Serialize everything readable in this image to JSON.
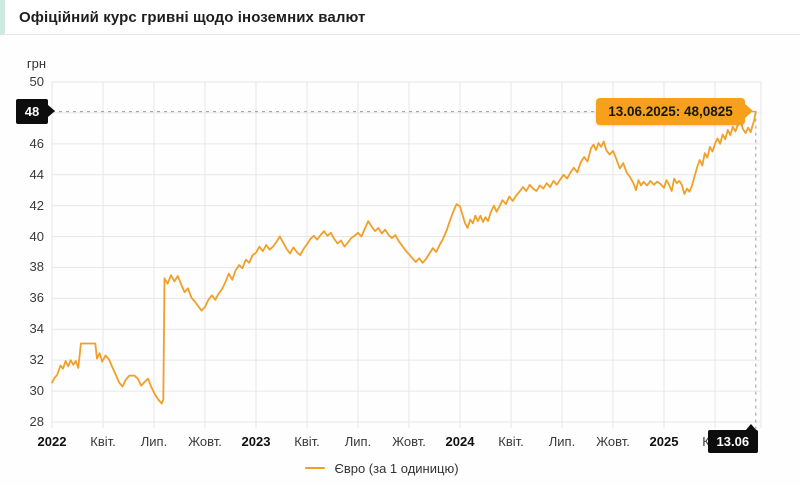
{
  "header": {
    "title": "Офіційний курс гривні щодо іноземних валют"
  },
  "chart_data": {
    "type": "line",
    "title": "Офіційний курс гривні щодо іноземних валют",
    "unit": "грн",
    "grid": true,
    "legend_position": "bottom",
    "legend": {
      "label": "Євро (за 1 одиницю)"
    },
    "colors": {
      "line": "#F0A028",
      "tooltip_bg": "#F6A01B",
      "badge_bg": "#0D0D0D",
      "grid": "#E7E7E7",
      "dash": "#9A9A9A",
      "header_accent": "#CDE9E0"
    },
    "x_unit": "months since Jan 2022",
    "x_range": [
      0,
      41.4
    ],
    "y_axis": {
      "label": "грн",
      "min": 28,
      "max": 50,
      "tick_step": 2,
      "ticks": [
        50,
        46,
        44,
        42,
        40,
        38,
        36,
        34,
        32,
        30,
        28
      ]
    },
    "x_axis": {
      "ticks": [
        {
          "m": 0,
          "label": "2022",
          "bold": true
        },
        {
          "m": 3,
          "label": "Квіт."
        },
        {
          "m": 6,
          "label": "Лип."
        },
        {
          "m": 9,
          "label": "Жовт."
        },
        {
          "m": 12,
          "label": "2023",
          "bold": true
        },
        {
          "m": 15,
          "label": "Квіт."
        },
        {
          "m": 18,
          "label": "Лип."
        },
        {
          "m": 21,
          "label": "Жовт."
        },
        {
          "m": 24,
          "label": "2024",
          "bold": true
        },
        {
          "m": 27,
          "label": "Квіт."
        },
        {
          "m": 30,
          "label": "Лип."
        },
        {
          "m": 33,
          "label": "Жовт."
        },
        {
          "m": 36,
          "label": "2025",
          "bold": true
        },
        {
          "m": 39,
          "label": "Квіт."
        }
      ]
    },
    "crosshair": {
      "y_badge": "48",
      "x_badge": "13.06",
      "tooltip": "13.06.2025: 48,0825",
      "month": 41.4,
      "value": 48.0825
    },
    "series": [
      {
        "name": "Євро (за 1 одиницю)",
        "color": "#F0A028",
        "points": [
          [
            0,
            30.55
          ],
          [
            0.15,
            30.85
          ],
          [
            0.3,
            31.05
          ],
          [
            0.5,
            31.65
          ],
          [
            0.65,
            31.45
          ],
          [
            0.8,
            31.95
          ],
          [
            0.95,
            31.6
          ],
          [
            1.1,
            32.0
          ],
          [
            1.25,
            31.7
          ],
          [
            1.4,
            31.95
          ],
          [
            1.55,
            31.5
          ],
          [
            1.7,
            33.08
          ],
          [
            2.55,
            33.08
          ],
          [
            2.65,
            32.1
          ],
          [
            2.8,
            32.45
          ],
          [
            2.95,
            31.9
          ],
          [
            3.15,
            32.3
          ],
          [
            3.35,
            32.05
          ],
          [
            3.55,
            31.55
          ],
          [
            3.75,
            31.05
          ],
          [
            3.95,
            30.55
          ],
          [
            4.15,
            30.3
          ],
          [
            4.35,
            30.75
          ],
          [
            4.55,
            31.0
          ],
          [
            4.85,
            31.0
          ],
          [
            5.05,
            30.8
          ],
          [
            5.25,
            30.35
          ],
          [
            5.45,
            30.6
          ],
          [
            5.65,
            30.8
          ],
          [
            5.85,
            30.25
          ],
          [
            6.05,
            29.8
          ],
          [
            6.25,
            29.45
          ],
          [
            6.45,
            29.2
          ],
          [
            6.55,
            29.45
          ],
          [
            6.62,
            37.3
          ],
          [
            6.8,
            36.95
          ],
          [
            7.0,
            37.5
          ],
          [
            7.2,
            37.1
          ],
          [
            7.4,
            37.45
          ],
          [
            7.6,
            36.9
          ],
          [
            7.8,
            36.4
          ],
          [
            8.0,
            36.65
          ],
          [
            8.2,
            36.05
          ],
          [
            8.4,
            35.8
          ],
          [
            8.6,
            35.5
          ],
          [
            8.8,
            35.2
          ],
          [
            9.0,
            35.45
          ],
          [
            9.2,
            35.9
          ],
          [
            9.4,
            36.2
          ],
          [
            9.6,
            35.9
          ],
          [
            9.8,
            36.3
          ],
          [
            10.0,
            36.6
          ],
          [
            10.2,
            37.05
          ],
          [
            10.4,
            37.6
          ],
          [
            10.6,
            37.2
          ],
          [
            10.8,
            37.8
          ],
          [
            11.0,
            38.15
          ],
          [
            11.2,
            37.95
          ],
          [
            11.4,
            38.5
          ],
          [
            11.6,
            38.3
          ],
          [
            11.8,
            38.8
          ],
          [
            12.0,
            38.95
          ],
          [
            12.2,
            39.35
          ],
          [
            12.4,
            39.05
          ],
          [
            12.6,
            39.45
          ],
          [
            12.8,
            39.15
          ],
          [
            13.0,
            39.35
          ],
          [
            13.2,
            39.65
          ],
          [
            13.4,
            40.0
          ],
          [
            13.6,
            39.6
          ],
          [
            13.8,
            39.2
          ],
          [
            14.0,
            38.9
          ],
          [
            14.2,
            39.3
          ],
          [
            14.4,
            39.0
          ],
          [
            14.6,
            38.8
          ],
          [
            14.8,
            39.2
          ],
          [
            15.0,
            39.5
          ],
          [
            15.2,
            39.85
          ],
          [
            15.4,
            40.05
          ],
          [
            15.6,
            39.8
          ],
          [
            15.8,
            40.1
          ],
          [
            16.0,
            40.35
          ],
          [
            16.2,
            40.05
          ],
          [
            16.4,
            40.25
          ],
          [
            16.6,
            39.85
          ],
          [
            16.8,
            39.55
          ],
          [
            17.0,
            39.75
          ],
          [
            17.2,
            39.35
          ],
          [
            17.4,
            39.6
          ],
          [
            17.6,
            39.9
          ],
          [
            17.8,
            40.05
          ],
          [
            18.0,
            40.25
          ],
          [
            18.2,
            40.0
          ],
          [
            18.4,
            40.5
          ],
          [
            18.6,
            41.0
          ],
          [
            18.8,
            40.65
          ],
          [
            19.0,
            40.35
          ],
          [
            19.2,
            40.55
          ],
          [
            19.4,
            40.2
          ],
          [
            19.6,
            40.45
          ],
          [
            19.8,
            40.1
          ],
          [
            20.0,
            39.9
          ],
          [
            20.2,
            40.1
          ],
          [
            20.4,
            39.7
          ],
          [
            20.6,
            39.4
          ],
          [
            20.8,
            39.1
          ],
          [
            21.0,
            38.85
          ],
          [
            21.2,
            38.6
          ],
          [
            21.4,
            38.35
          ],
          [
            21.6,
            38.6
          ],
          [
            21.8,
            38.3
          ],
          [
            22.0,
            38.55
          ],
          [
            22.2,
            38.9
          ],
          [
            22.4,
            39.25
          ],
          [
            22.6,
            39.0
          ],
          [
            22.8,
            39.45
          ],
          [
            23.0,
            39.85
          ],
          [
            23.2,
            40.35
          ],
          [
            23.4,
            41.0
          ],
          [
            23.6,
            41.6
          ],
          [
            23.8,
            42.1
          ],
          [
            24.0,
            41.95
          ],
          [
            24.15,
            41.4
          ],
          [
            24.3,
            40.85
          ],
          [
            24.45,
            40.55
          ],
          [
            24.6,
            41.1
          ],
          [
            24.75,
            40.85
          ],
          [
            24.9,
            41.35
          ],
          [
            25.05,
            41.0
          ],
          [
            25.2,
            41.35
          ],
          [
            25.35,
            40.95
          ],
          [
            25.5,
            41.25
          ],
          [
            25.65,
            41.0
          ],
          [
            25.8,
            41.55
          ],
          [
            26.0,
            42.0
          ],
          [
            26.15,
            41.6
          ],
          [
            26.3,
            41.9
          ],
          [
            26.5,
            42.35
          ],
          [
            26.7,
            42.1
          ],
          [
            26.9,
            42.6
          ],
          [
            27.1,
            42.3
          ],
          [
            27.3,
            42.65
          ],
          [
            27.5,
            42.9
          ],
          [
            27.7,
            43.2
          ],
          [
            27.9,
            42.95
          ],
          [
            28.1,
            43.35
          ],
          [
            28.3,
            43.1
          ],
          [
            28.5,
            42.95
          ],
          [
            28.7,
            43.3
          ],
          [
            28.9,
            43.1
          ],
          [
            29.1,
            43.45
          ],
          [
            29.3,
            43.2
          ],
          [
            29.5,
            43.6
          ],
          [
            29.7,
            43.35
          ],
          [
            29.9,
            43.7
          ],
          [
            30.1,
            44.0
          ],
          [
            30.3,
            43.75
          ],
          [
            30.5,
            44.15
          ],
          [
            30.7,
            44.45
          ],
          [
            30.9,
            44.15
          ],
          [
            31.1,
            44.8
          ],
          [
            31.3,
            45.15
          ],
          [
            31.5,
            44.85
          ],
          [
            31.7,
            45.7
          ],
          [
            31.85,
            45.95
          ],
          [
            32.0,
            45.6
          ],
          [
            32.15,
            46.05
          ],
          [
            32.3,
            45.8
          ],
          [
            32.45,
            46.15
          ],
          [
            32.6,
            45.6
          ],
          [
            32.8,
            45.3
          ],
          [
            33.0,
            45.55
          ],
          [
            33.2,
            45.0
          ],
          [
            33.4,
            44.4
          ],
          [
            33.6,
            44.75
          ],
          [
            33.8,
            44.15
          ],
          [
            34.0,
            43.85
          ],
          [
            34.2,
            43.45
          ],
          [
            34.35,
            43.0
          ],
          [
            34.5,
            43.65
          ],
          [
            34.65,
            43.3
          ],
          [
            34.8,
            43.55
          ],
          [
            35.0,
            43.3
          ],
          [
            35.2,
            43.6
          ],
          [
            35.4,
            43.35
          ],
          [
            35.6,
            43.55
          ],
          [
            35.8,
            43.4
          ],
          [
            36.0,
            43.15
          ],
          [
            36.15,
            43.65
          ],
          [
            36.3,
            43.35
          ],
          [
            36.45,
            42.95
          ],
          [
            36.6,
            43.75
          ],
          [
            36.75,
            43.45
          ],
          [
            36.9,
            43.6
          ],
          [
            37.05,
            43.35
          ],
          [
            37.2,
            42.75
          ],
          [
            37.35,
            43.1
          ],
          [
            37.5,
            42.9
          ],
          [
            37.65,
            43.3
          ],
          [
            37.8,
            43.9
          ],
          [
            37.95,
            44.5
          ],
          [
            38.1,
            44.95
          ],
          [
            38.25,
            44.6
          ],
          [
            38.4,
            45.4
          ],
          [
            38.55,
            45.1
          ],
          [
            38.7,
            45.8
          ],
          [
            38.85,
            45.5
          ],
          [
            39.0,
            46.0
          ],
          [
            39.15,
            46.35
          ],
          [
            39.3,
            46.0
          ],
          [
            39.45,
            46.6
          ],
          [
            39.6,
            46.3
          ],
          [
            39.75,
            46.9
          ],
          [
            39.9,
            46.55
          ],
          [
            40.05,
            47.1
          ],
          [
            40.2,
            46.8
          ],
          [
            40.35,
            47.25
          ],
          [
            40.5,
            47.5
          ],
          [
            40.65,
            46.95
          ],
          [
            40.8,
            46.7
          ],
          [
            40.95,
            47.05
          ],
          [
            41.1,
            46.75
          ],
          [
            41.2,
            47.15
          ],
          [
            41.3,
            47.5
          ],
          [
            41.4,
            48.0825
          ]
        ]
      }
    ]
  }
}
